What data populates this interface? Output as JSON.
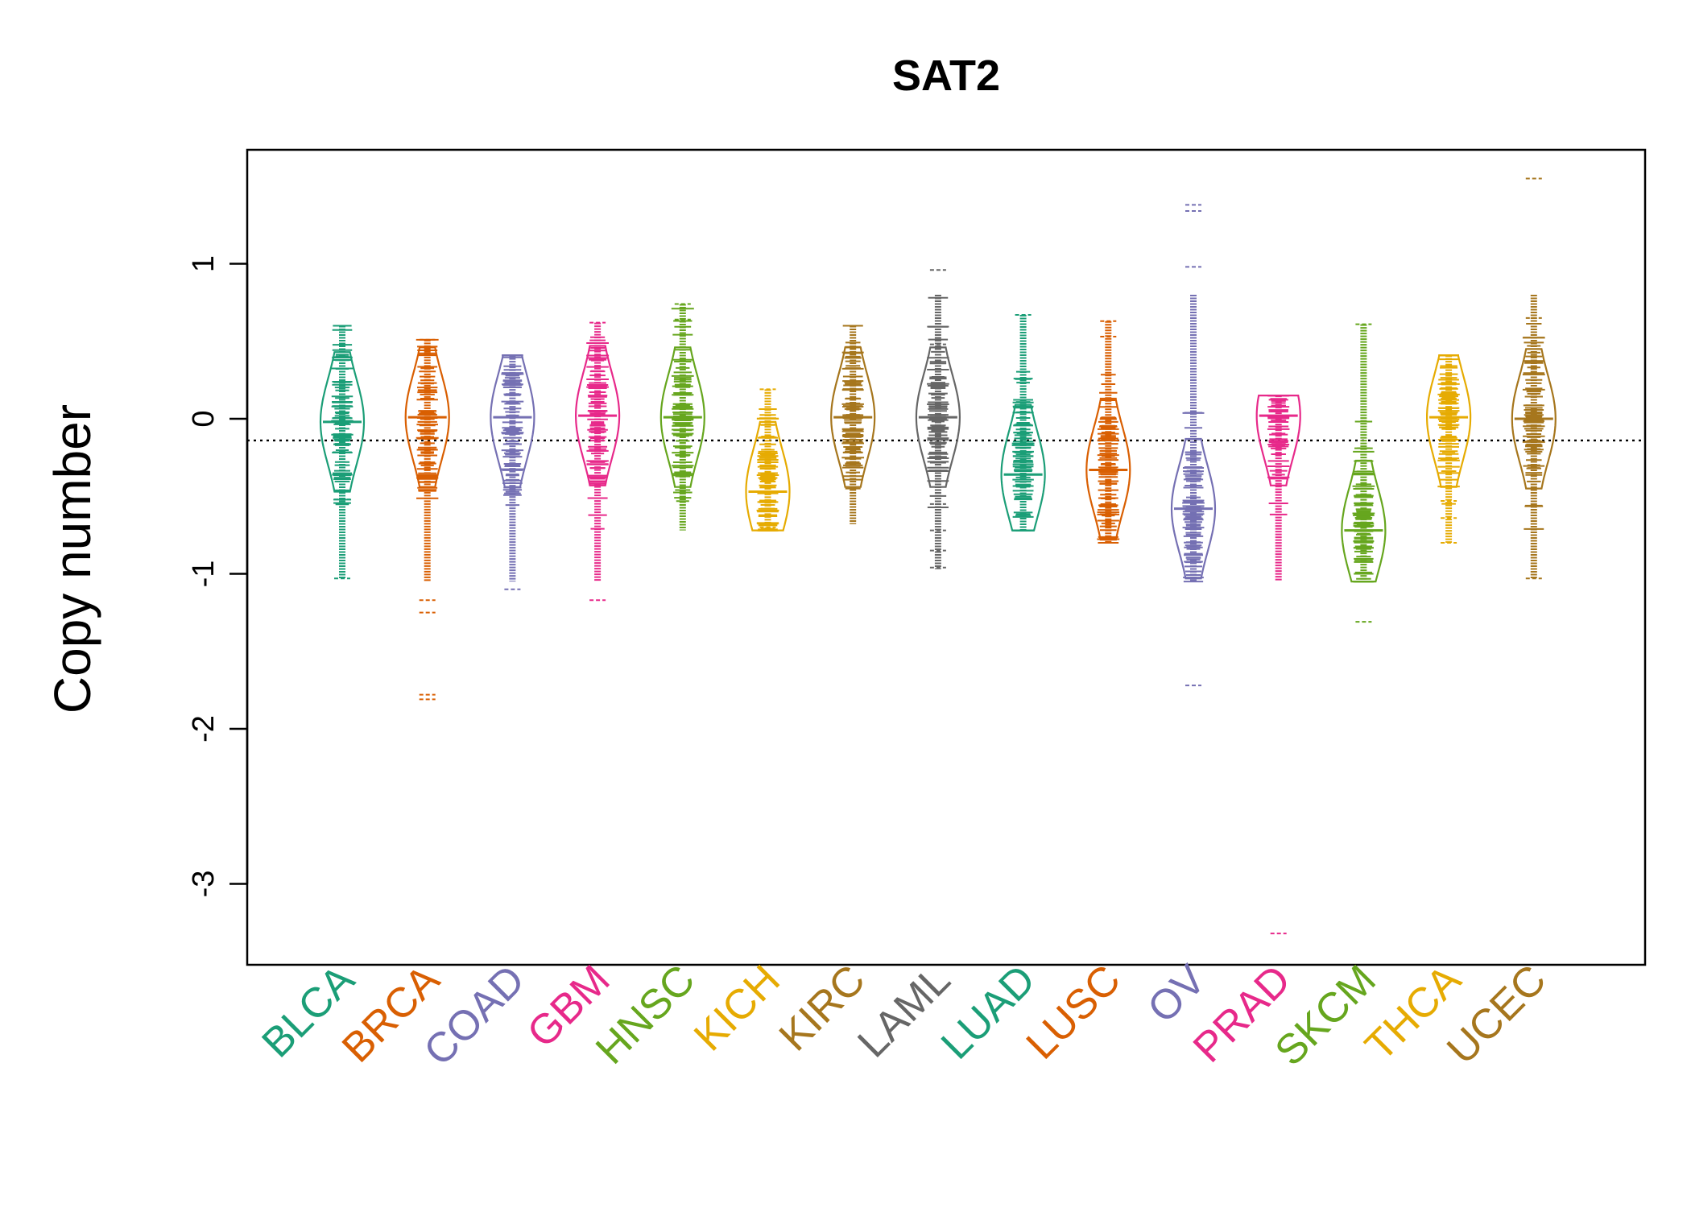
{
  "chart_data": {
    "type": "beanplot",
    "title": "SAT2",
    "ylabel": "Copy number",
    "xlabel": "",
    "ylim": [
      -3.5,
      1.7
    ],
    "yticks": [
      1,
      0,
      -1,
      -2,
      -3
    ],
    "ytick_labels": [
      "1",
      "0",
      "-1",
      "-2",
      "-3"
    ],
    "reference_line": -0.14,
    "categories": [
      {
        "name": "BLCA",
        "color": "#1B9E77",
        "median": -0.02,
        "min": -1.03,
        "max": 0.6,
        "outliers": [
          0.6,
          -0.52,
          -1.03
        ]
      },
      {
        "name": "BRCA",
        "color": "#D95F02",
        "median": 0.01,
        "min": -1.8,
        "max": 0.51,
        "outliers": [
          0.51,
          -1.17,
          -1.25,
          -1.78,
          -1.81
        ]
      },
      {
        "name": "COAD",
        "color": "#7570B3",
        "median": 0.01,
        "min": -1.14,
        "max": 0.41,
        "outliers": [
          0.41,
          -1.1
        ]
      },
      {
        "name": "GBM",
        "color": "#E7298A",
        "median": 0.02,
        "min": -1.17,
        "max": 0.62,
        "outliers": [
          0.62,
          0.47,
          -1.17
        ]
      },
      {
        "name": "HNSC",
        "color": "#66A61E",
        "median": 0.01,
        "min": -0.72,
        "max": 0.74,
        "outliers": [
          0.74,
          0.64
        ]
      },
      {
        "name": "KICH",
        "color": "#E6AB02",
        "median": -0.47,
        "min": -0.72,
        "max": 0.19,
        "outliers": [
          0.19,
          -0.7
        ]
      },
      {
        "name": "KIRC",
        "color": "#A6761D",
        "median": 0.01,
        "min": -0.68,
        "max": 0.6,
        "outliers": [
          0.6
        ]
      },
      {
        "name": "LAML",
        "color": "#666666",
        "median": 0.01,
        "min": -0.97,
        "max": 0.96,
        "outliers": [
          0.96,
          0.48,
          -0.55,
          -0.72,
          -0.85,
          -0.96
        ]
      },
      {
        "name": "LUAD",
        "color": "#1B9E77",
        "median": -0.36,
        "min": -0.72,
        "max": 0.67,
        "outliers": [
          0.67
        ]
      },
      {
        "name": "LUSC",
        "color": "#D95F02",
        "median": -0.33,
        "min": -0.8,
        "max": 0.63,
        "outliers": [
          0.63,
          0.53
        ]
      },
      {
        "name": "OV",
        "color": "#7570B3",
        "median": -0.58,
        "min": -1.72,
        "max": 1.38,
        "outliers": [
          1.38,
          1.34,
          0.98,
          -1.72
        ]
      },
      {
        "name": "PRAD",
        "color": "#E7298A",
        "median": 0.02,
        "min": -3.32,
        "max": 0.15,
        "outliers": [
          0.15,
          -3.32
        ]
      },
      {
        "name": "SKCM",
        "color": "#66A61E",
        "median": -0.72,
        "min": -1.31,
        "max": 0.61,
        "outliers": [
          0.61,
          -1.31
        ]
      },
      {
        "name": "THCA",
        "color": "#E6AB02",
        "median": 0.01,
        "min": -0.8,
        "max": 0.41,
        "outliers": [
          0.41,
          -0.53,
          -0.64,
          -0.8
        ]
      },
      {
        "name": "UCEC",
        "color": "#A6761D",
        "median": 0.0,
        "min": -1.03,
        "max": 1.55,
        "outliers": [
          1.55,
          0.65,
          -1.03
        ]
      }
    ]
  }
}
